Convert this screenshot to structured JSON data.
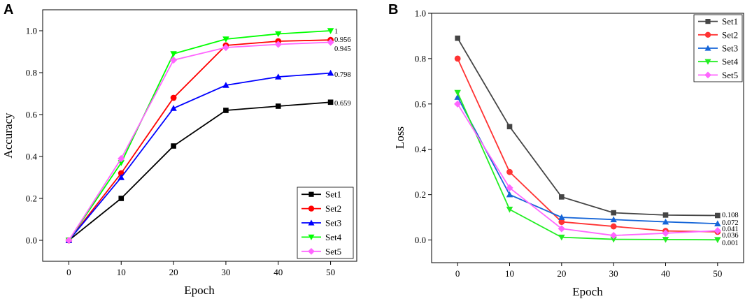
{
  "chart_data": [
    {
      "panel": "A",
      "type": "line",
      "xlabel": "Epoch",
      "ylabel": "Accuracy",
      "x": [
        0,
        10,
        20,
        30,
        40,
        50
      ],
      "xlim": [
        -5,
        55
      ],
      "ylim": [
        -0.1,
        1.1
      ],
      "xticks": [
        "0",
        "10",
        "20",
        "30",
        "40",
        "50"
      ],
      "yticks": [
        "0.0",
        "0.2",
        "0.4",
        "0.6",
        "0.8",
        "1.0"
      ],
      "legend_position": "bottom-right",
      "series": [
        {
          "name": "Set1",
          "color": "#000000",
          "marker": "square",
          "values": [
            0,
            0.2,
            0.45,
            0.62,
            0.64,
            0.659
          ],
          "end_label": "0.659"
        },
        {
          "name": "Set2",
          "color": "#ff0000",
          "marker": "circle",
          "values": [
            0,
            0.32,
            0.68,
            0.93,
            0.95,
            0.956
          ],
          "end_label": "0.956"
        },
        {
          "name": "Set3",
          "color": "#0000ff",
          "marker": "triangle-up",
          "values": [
            0,
            0.3,
            0.63,
            0.74,
            0.78,
            0.798
          ],
          "end_label": "0.798"
        },
        {
          "name": "Set4",
          "color": "#00ff00",
          "marker": "triangle-down",
          "values": [
            0,
            0.37,
            0.89,
            0.96,
            0.985,
            1.0
          ],
          "end_label": "1"
        },
        {
          "name": "Set5",
          "color": "#ff66ff",
          "marker": "diamond",
          "values": [
            0,
            0.39,
            0.86,
            0.92,
            0.935,
            0.945
          ],
          "end_label": "0.945"
        }
      ]
    },
    {
      "panel": "B",
      "type": "line",
      "xlabel": "Epoch",
      "ylabel": "Loss",
      "x": [
        0,
        10,
        20,
        30,
        40,
        50
      ],
      "xlim": [
        -5,
        55
      ],
      "ylim": [
        -0.1,
        1.0
      ],
      "xticks": [
        "0",
        "10",
        "20",
        "30",
        "40",
        "50"
      ],
      "yticks": [
        "0.0",
        "0.2",
        "0.4",
        "0.6",
        "0.8",
        "1.0"
      ],
      "legend_position": "top-right",
      "series": [
        {
          "name": "Set1",
          "color": "#454545",
          "marker": "square",
          "values": [
            0.89,
            0.5,
            0.19,
            0.12,
            0.11,
            0.108
          ],
          "end_label": "0.108"
        },
        {
          "name": "Set2",
          "color": "#ff3333",
          "marker": "circle",
          "values": [
            0.8,
            0.3,
            0.08,
            0.06,
            0.04,
            0.036
          ],
          "end_label": "0.036"
        },
        {
          "name": "Set3",
          "color": "#1565d8",
          "marker": "triangle-up",
          "values": [
            0.63,
            0.2,
            0.1,
            0.09,
            0.08,
            0.072
          ],
          "end_label": "0.072"
        },
        {
          "name": "Set4",
          "color": "#22ee22",
          "marker": "triangle-down",
          "values": [
            0.65,
            0.135,
            0.012,
            0.003,
            0.002,
            0.001
          ],
          "end_label": "0.001"
        },
        {
          "name": "Set5",
          "color": "#ff66ff",
          "marker": "diamond",
          "values": [
            0.6,
            0.23,
            0.05,
            0.02,
            0.03,
            0.041
          ],
          "end_label": "0.041"
        }
      ]
    }
  ]
}
